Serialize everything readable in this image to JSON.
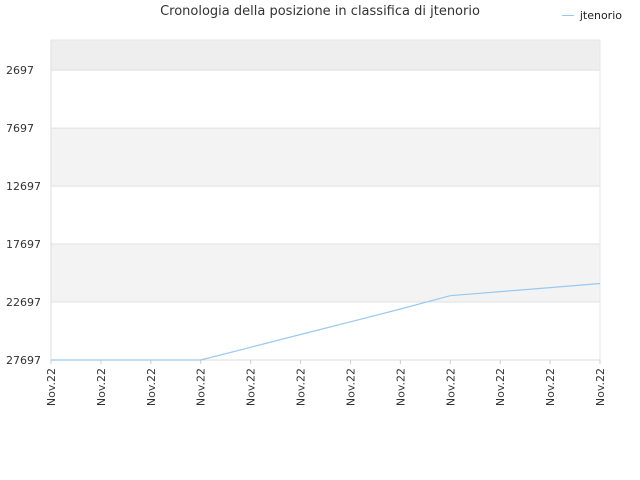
{
  "chart_data": {
    "type": "line",
    "title": "Cronologia della posizione in classifica di jtenorio",
    "xlabel": "",
    "ylabel": "",
    "y_inverted": true,
    "ylim": [
      27697,
      97
    ],
    "y_ticks": [
      2697,
      7697,
      12697,
      17697,
      22697,
      27697
    ],
    "categories": [
      "Nov.22",
      "Nov.22",
      "Nov.22",
      "Nov.22",
      "Nov.22",
      "Nov.22",
      "Nov.22",
      "Nov.22",
      "Nov.22",
      "Nov.22",
      "Nov.22",
      "Nov.22"
    ],
    "series": [
      {
        "name": "jtenorio",
        "color": "#99c9ef",
        "values": [
          27697,
          27697,
          27697,
          27697,
          26600,
          25500,
          24400,
          23300,
          22150,
          21800,
          21450,
          21100
        ]
      }
    ],
    "legend_position": "top-right",
    "grid": true,
    "band_colors": [
      "#eeeeee",
      "#ffffff",
      "#f3f3f3"
    ]
  }
}
